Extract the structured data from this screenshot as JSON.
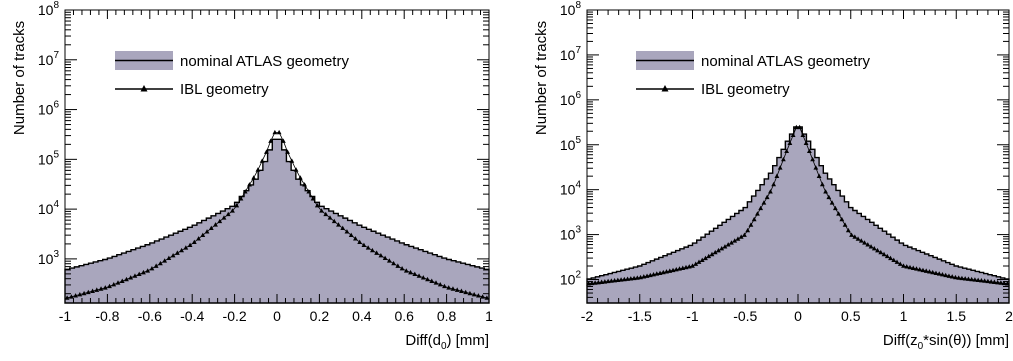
{
  "colors": {
    "fill": "#a9a6bd",
    "line": "#000000",
    "axis": "#000000"
  },
  "chart_data": [
    {
      "type": "area",
      "xlabel": "Diff(d0) [mm]",
      "xlabel_parts": {
        "main": "Diff(d",
        "sub": "0",
        "tail": ") [mm]"
      },
      "ylabel": "Number of tracks",
      "xlim": [
        -1,
        1
      ],
      "ylim": [
        100,
        100000000
      ],
      "log_y": true,
      "grid": false,
      "legend_placement": "top-left",
      "x_ticks": [
        "-1",
        "-0.8",
        "-0.6",
        "-0.4",
        "-0.2",
        "0",
        "0.2",
        "0.4",
        "0.6",
        "0.8",
        "1"
      ],
      "y_ticks": [
        {
          "value": 1000,
          "mant": "10",
          "exp": "3"
        },
        {
          "value": 10000,
          "mant": "10",
          "exp": "4"
        },
        {
          "value": 100000,
          "mant": "10",
          "exp": "5"
        },
        {
          "value": 1000000,
          "mant": "10",
          "exp": "6"
        },
        {
          "value": 10000000,
          "mant": "10",
          "exp": "7"
        },
        {
          "value": 100000000,
          "mant": "10",
          "exp": "8"
        }
      ],
      "series": [
        {
          "name": "nominal ATLAS geometry",
          "style": "filled-step",
          "x": [
            -1,
            -0.8,
            -0.6,
            -0.4,
            -0.2,
            -0.1,
            -0.05,
            -0.02,
            0,
            0.02,
            0.05,
            0.1,
            0.2,
            0.4,
            0.6,
            0.8,
            1
          ],
          "values": [
            600,
            1000,
            2000,
            4500,
            12000,
            40000,
            100000,
            220000,
            300000,
            220000,
            100000,
            40000,
            12000,
            4500,
            2000,
            1000,
            600
          ]
        },
        {
          "name": "IBL geometry",
          "style": "triangle-markers",
          "x": [
            -1,
            -0.8,
            -0.6,
            -0.4,
            -0.2,
            -0.1,
            -0.05,
            -0.02,
            0,
            0.02,
            0.05,
            0.1,
            0.2,
            0.4,
            0.6,
            0.8,
            1
          ],
          "values": [
            160,
            270,
            600,
            2000,
            10000,
            50000,
            140000,
            300000,
            400000,
            300000,
            140000,
            50000,
            10000,
            2000,
            600,
            270,
            160
          ]
        }
      ]
    },
    {
      "type": "area",
      "xlabel": "Diff(z0*sin(θ)) [mm]",
      "xlabel_parts": {
        "main": "Diff(z",
        "sub": "0",
        "tail": "*sin(θ)) [mm]"
      },
      "ylabel": "Number of tracks",
      "xlim": [
        -2,
        2
      ],
      "ylim": [
        10,
        100000000
      ],
      "log_y": true,
      "grid": false,
      "legend_placement": "top-left",
      "x_ticks": [
        "-2",
        "-1.5",
        "-1",
        "-0.5",
        "0",
        "0.5",
        "1",
        "1.5",
        "2"
      ],
      "y_ticks": [
        {
          "value": 100,
          "mant": "10",
          "exp": "2"
        },
        {
          "value": 1000,
          "mant": "10",
          "exp": "3"
        },
        {
          "value": 10000,
          "mant": "10",
          "exp": "4"
        },
        {
          "value": 100000,
          "mant": "10",
          "exp": "5"
        },
        {
          "value": 1000000,
          "mant": "10",
          "exp": "6"
        },
        {
          "value": 10000000,
          "mant": "10",
          "exp": "7"
        },
        {
          "value": 100000000,
          "mant": "10",
          "exp": "8"
        }
      ],
      "series": [
        {
          "name": "nominal ATLAS geometry",
          "style": "filled-step",
          "x": [
            -2,
            -1.5,
            -1,
            -0.5,
            -0.25,
            -0.1,
            0,
            0.1,
            0.25,
            0.5,
            1,
            1.5,
            2
          ],
          "values": [
            100,
            200,
            600,
            4000,
            25000,
            120000,
            300000,
            120000,
            25000,
            4000,
            600,
            200,
            100
          ],
          "fill_color_key": "fill"
        },
        {
          "name": "IBL geometry",
          "style": "triangle-markers",
          "x": [
            -2,
            -1.5,
            -1,
            -0.5,
            -0.25,
            -0.1,
            0,
            0.1,
            0.25,
            0.5,
            1,
            1.5,
            2
          ],
          "values": [
            80,
            110,
            200,
            1000,
            10000,
            80000,
            300000,
            80000,
            10000,
            1000,
            200,
            110,
            80
          ]
        }
      ]
    }
  ]
}
